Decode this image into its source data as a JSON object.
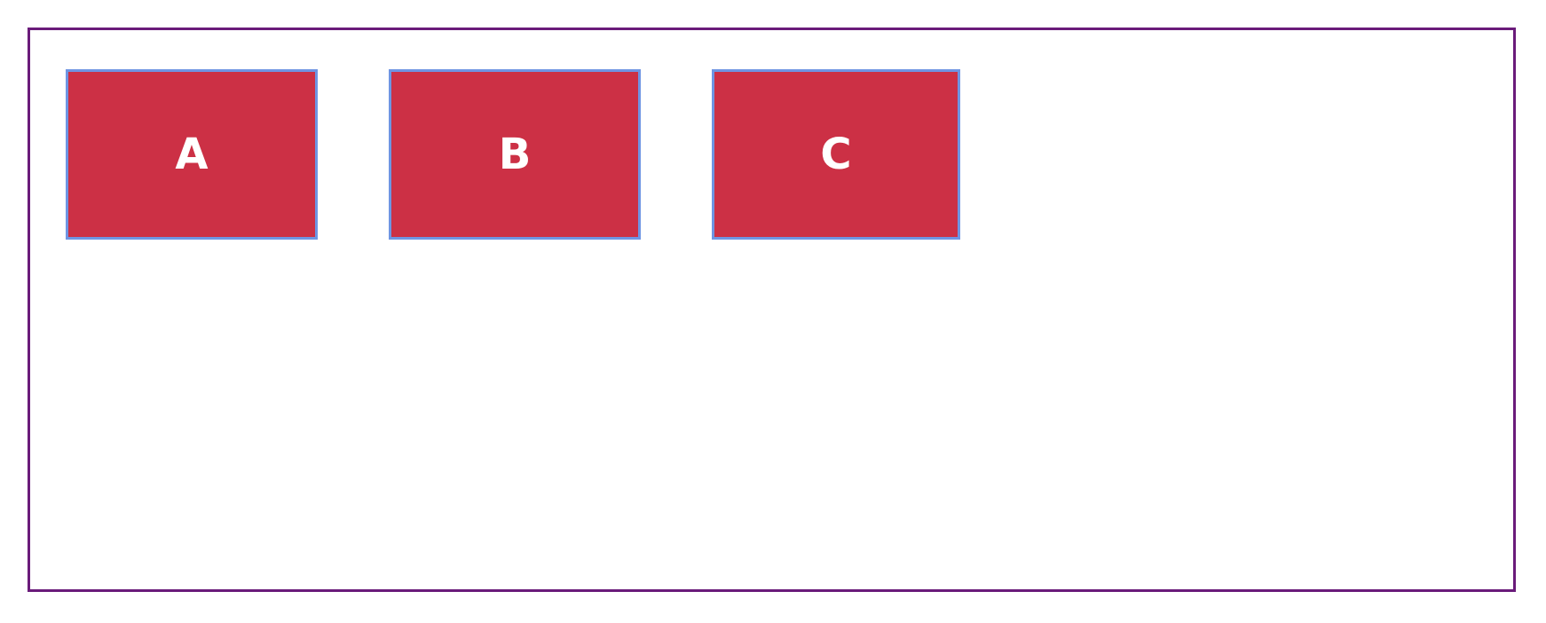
{
  "boxes": [
    {
      "label": "A"
    },
    {
      "label": "B"
    },
    {
      "label": "C"
    }
  ],
  "colors": {
    "container_border": "#6a1b7a",
    "box_fill": "#cc3045",
    "box_border": "#6f95e3",
    "box_text": "#ffffff",
    "background": "#ffffff"
  }
}
